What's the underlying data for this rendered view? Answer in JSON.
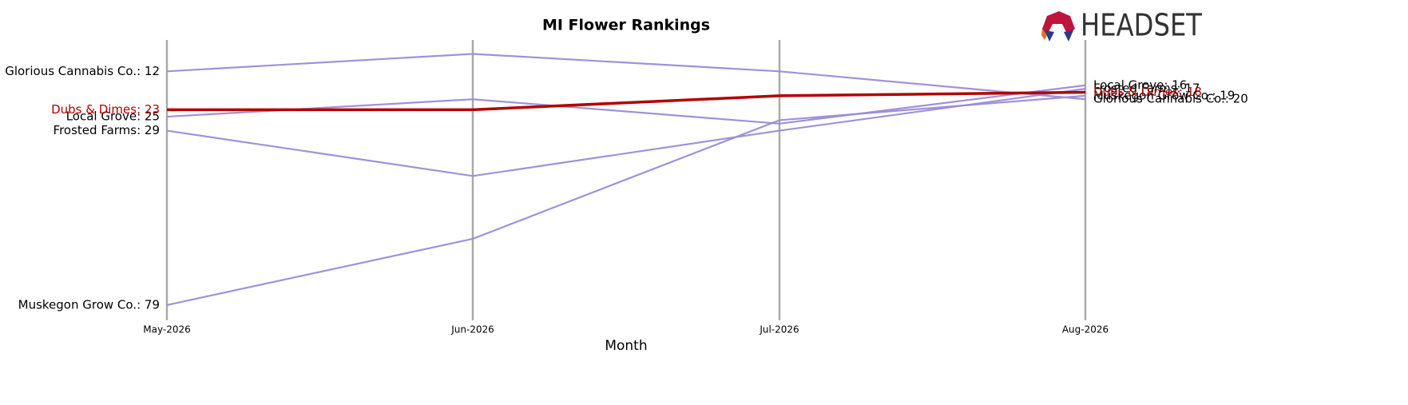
{
  "chart_data": {
    "type": "line",
    "title": "MI Flower Rankings",
    "x_label": "Month",
    "logo_text": "HEADSET",
    "categories": [
      "May-2026",
      "Jun-2026",
      "Jul-2026",
      "Aug-2026"
    ],
    "ylim": [
      82,
      3
    ],
    "inverted": true,
    "series": [
      {
        "name": "Glorious Cannabis Co.",
        "color": "#9b8bd9",
        "values": [
          12,
          7,
          12,
          20
        ],
        "value_labels": [
          "Glorious Cannabis Co.: 12",
          null,
          null,
          "Glorious Cannabis Co.: 20"
        ]
      },
      {
        "name": "Local Grove",
        "color": "#9b8bd9",
        "values": [
          25,
          20,
          27,
          16
        ],
        "value_labels": [
          "Local Grove: 25",
          null,
          null,
          "Local Grove: 16"
        ]
      },
      {
        "name": "Frosted Farms",
        "color": "#9b8bd9",
        "values": [
          29,
          42,
          29,
          17
        ],
        "value_labels": [
          "Frosted Farms: 29",
          null,
          null,
          "Frosted Farms: 17"
        ]
      },
      {
        "name": "Muskegon Grow Co.",
        "color": "#9b8bd9",
        "values": [
          79,
          60,
          26,
          19
        ],
        "value_labels": [
          "Muskegon Grow Co.: 79",
          null,
          null,
          "Muskegon Grow Co.: 19"
        ]
      },
      {
        "name": "Dubs & Dimes",
        "color": "#b30000",
        "highlight": true,
        "values": [
          23,
          23,
          19,
          18
        ],
        "value_labels": [
          "Dubs & Dimes: 23",
          null,
          null,
          "Dubs & Dimes: 18"
        ]
      }
    ]
  }
}
